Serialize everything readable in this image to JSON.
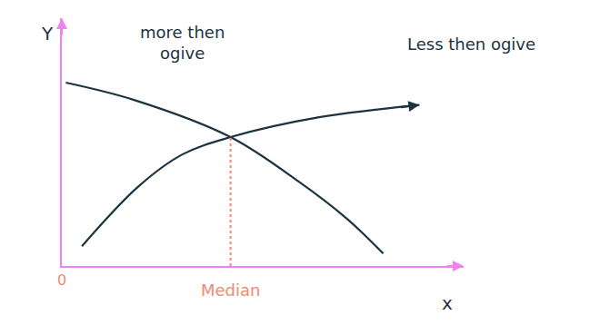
{
  "chart_data": {
    "type": "line",
    "xlabel": "x",
    "ylabel": "Y",
    "series": [
      {
        "name": "more then ogive",
        "color": "#1c3340",
        "x": [
          1,
          18,
          42,
          59,
          71,
          80
        ],
        "values": [
          74,
          67,
          52,
          34,
          19,
          5
        ]
      },
      {
        "name": "Less then ogive",
        "color": "#1c3340",
        "x": [
          5,
          19,
          30,
          42,
          64,
          89
        ],
        "values": [
          8,
          32,
          45,
          52,
          60,
          65
        ]
      }
    ],
    "median": {
      "label": "Median",
      "x": 42,
      "y": 52,
      "color": "#ef8a74"
    },
    "xlim": [
      0,
      100
    ],
    "ylim": [
      0,
      100
    ],
    "xticks": [
      0
    ],
    "yticks": [],
    "tick_labels": "x",
    "grid": false
  }
}
